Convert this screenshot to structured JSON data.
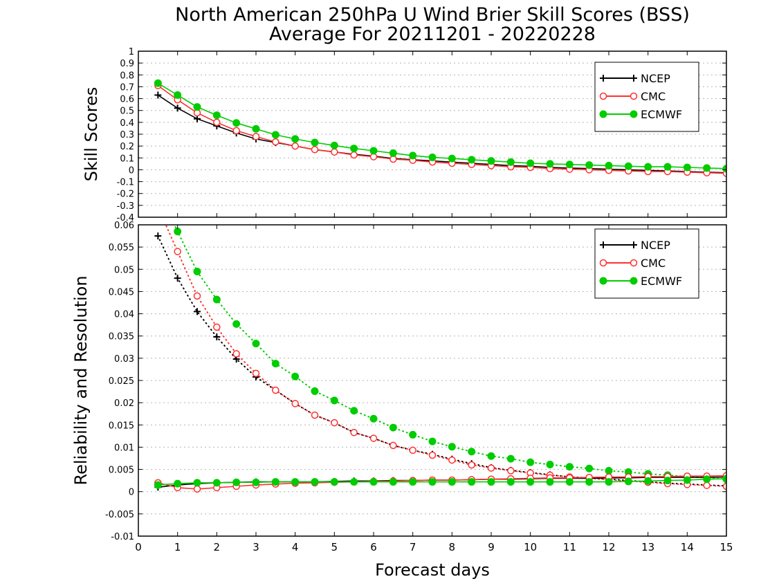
{
  "chart_data": {
    "type": "line",
    "title": "North American 250hPa U Wind Brier Skill Scores (BSS)",
    "subtitle": "Average For 20211201 - 20220228",
    "xlabel": "Forecast days",
    "x": [
      0.5,
      1,
      1.5,
      2,
      2.5,
      3,
      3.5,
      4,
      4.5,
      5,
      5.5,
      6,
      6.5,
      7,
      7.5,
      8,
      8.5,
      9,
      9.5,
      10,
      10.5,
      11,
      11.5,
      12,
      12.5,
      13,
      13.5,
      14,
      14.5,
      15
    ],
    "xlim": [
      0,
      15
    ],
    "xticks": [
      "0",
      "1",
      "2",
      "3",
      "4",
      "5",
      "6",
      "7",
      "8",
      "9",
      "10",
      "11",
      "12",
      "13",
      "14",
      "15"
    ],
    "legend_position": "top-right",
    "colors": {
      "NCEP": "#000000",
      "CMC": "#ff3030",
      "ECMWF": "#00cc00"
    },
    "panels": [
      {
        "ylabel": "Skill Scores",
        "ylim": [
          -0.4,
          1
        ],
        "yticks": [
          "1",
          "0.9",
          "0.8",
          "0.7",
          "0.6",
          "0.5",
          "0.4",
          "0.3",
          "0.2",
          "0.1",
          "0",
          "-0.1",
          "-0.2",
          "-0.3",
          "-0.4"
        ],
        "legend": [
          "NCEP",
          "CMC",
          "ECMWF"
        ],
        "series": [
          {
            "name": "NCEP",
            "marker": "plus",
            "style": "solid",
            "values": [
              0.63,
              0.52,
              0.43,
              0.37,
              0.31,
              0.26,
              0.23,
              0.2,
              0.17,
              0.15,
              0.13,
              0.115,
              0.095,
              0.085,
              0.075,
              0.065,
              0.055,
              0.045,
              0.035,
              0.03,
              0.02,
              0.015,
              0.01,
              0.005,
              0,
              -0.005,
              -0.01,
              -0.015,
              -0.02,
              -0.025
            ]
          },
          {
            "name": "CMC",
            "marker": "open-circle",
            "style": "solid",
            "values": [
              0.71,
              0.59,
              0.48,
              0.4,
              0.33,
              0.28,
              0.235,
              0.2,
              0.17,
              0.15,
              0.125,
              0.11,
              0.09,
              0.08,
              0.065,
              0.055,
              0.045,
              0.035,
              0.025,
              0.02,
              0.01,
              0.005,
              0,
              -0.005,
              -0.01,
              -0.015,
              -0.015,
              -0.02,
              -0.025,
              -0.03
            ]
          },
          {
            "name": "ECMWF",
            "marker": "filled-circle",
            "style": "solid",
            "values": [
              0.73,
              0.63,
              0.53,
              0.46,
              0.395,
              0.345,
              0.295,
              0.26,
              0.23,
              0.205,
              0.18,
              0.16,
              0.14,
              0.12,
              0.105,
              0.095,
              0.085,
              0.075,
              0.065,
              0.055,
              0.05,
              0.045,
              0.04,
              0.035,
              0.03,
              0.025,
              0.025,
              0.02,
              0.015,
              0.01
            ]
          }
        ]
      },
      {
        "ylabel": "Reliability and Resolution",
        "ylim": [
          -0.01,
          0.06
        ],
        "yticks": [
          "0.06",
          "0.055",
          "0.05",
          "0.045",
          "0.04",
          "0.035",
          "0.03",
          "0.025",
          "0.02",
          "0.015",
          "0.01",
          "0.005",
          "0",
          "-0.005",
          "-0.01"
        ],
        "legend": [
          "NCEP",
          "CMC",
          "ECMWF"
        ],
        "series": [
          {
            "name": "NCEP",
            "marker": "plus",
            "style": "dotted",
            "values": [
              0.0575,
              0.048,
              0.0405,
              0.0348,
              0.0298,
              0.0258,
              0.0228,
              0.0198,
              0.0172,
              0.0155,
              0.0133,
              0.012,
              0.0104,
              0.0093,
              0.0084,
              0.0073,
              0.0063,
              0.0054,
              0.0048,
              0.0043,
              0.0038,
              0.0033,
              0.0031,
              0.0028,
              0.0025,
              0.0022,
              0.0019,
              0.0017,
              0.0015,
              0.0013
            ]
          },
          {
            "name": "CMC",
            "marker": "open-circle",
            "style": "dotted",
            "values": [
              0.064,
              0.054,
              0.044,
              0.037,
              0.031,
              0.0266,
              0.0228,
              0.0198,
              0.0172,
              0.0155,
              0.0133,
              0.012,
              0.0104,
              0.0093,
              0.0082,
              0.0071,
              0.006,
              0.0053,
              0.0047,
              0.0042,
              0.0037,
              0.0033,
              0.003,
              0.0027,
              0.0024,
              0.0021,
              0.0018,
              0.0016,
              0.0014,
              0.0012
            ]
          },
          {
            "name": "ECMWF",
            "marker": "filled-circle",
            "style": "dotted",
            "values": [
              0.068,
              0.0585,
              0.0495,
              0.0432,
              0.0377,
              0.0333,
              0.0288,
              0.0259,
              0.0226,
              0.0205,
              0.0182,
              0.0164,
              0.0144,
              0.0128,
              0.0113,
              0.0101,
              0.009,
              0.008,
              0.0074,
              0.0066,
              0.0061,
              0.0056,
              0.0052,
              0.0047,
              0.0044,
              0.004,
              0.0037,
              0.0034,
              0.0031,
              0.0028
            ]
          },
          {
            "name": "NCEP",
            "marker": "plus",
            "style": "solid",
            "values": [
              0.001,
              0.0015,
              0.0018,
              0.002,
              0.0021,
              0.0022,
              0.0022,
              0.0022,
              0.0022,
              0.0023,
              0.0024,
              0.0024,
              0.0025,
              0.0025,
              0.0026,
              0.0026,
              0.0027,
              0.0028,
              0.0028,
              0.0029,
              0.003,
              0.003,
              0.003,
              0.0031,
              0.0031,
              0.0032,
              0.0032,
              0.0032,
              0.0032,
              0.0033
            ]
          },
          {
            "name": "CMC",
            "marker": "open-circle",
            "style": "solid",
            "values": [
              0.002,
              0.0009,
              0.0006,
              0.0009,
              0.0012,
              0.0015,
              0.0017,
              0.0019,
              0.002,
              0.0021,
              0.0022,
              0.0023,
              0.0024,
              0.0025,
              0.0026,
              0.0026,
              0.0027,
              0.0028,
              0.0029,
              0.003,
              0.0031,
              0.0031,
              0.0032,
              0.0033,
              0.0033,
              0.0034,
              0.0034,
              0.0035,
              0.0035,
              0.0036
            ]
          },
          {
            "name": "ECMWF",
            "marker": "filled-circle",
            "style": "solid",
            "values": [
              0.0015,
              0.0018,
              0.002,
              0.002,
              0.0021,
              0.0021,
              0.0022,
              0.0022,
              0.0022,
              0.0022,
              0.0022,
              0.0022,
              0.0022,
              0.0022,
              0.0022,
              0.0022,
              0.0022,
              0.0022,
              0.0022,
              0.0022,
              0.0022,
              0.0022,
              0.0022,
              0.0022,
              0.0023,
              0.0024,
              0.0025,
              0.0026,
              0.0028,
              0.0029
            ]
          }
        ]
      }
    ]
  }
}
